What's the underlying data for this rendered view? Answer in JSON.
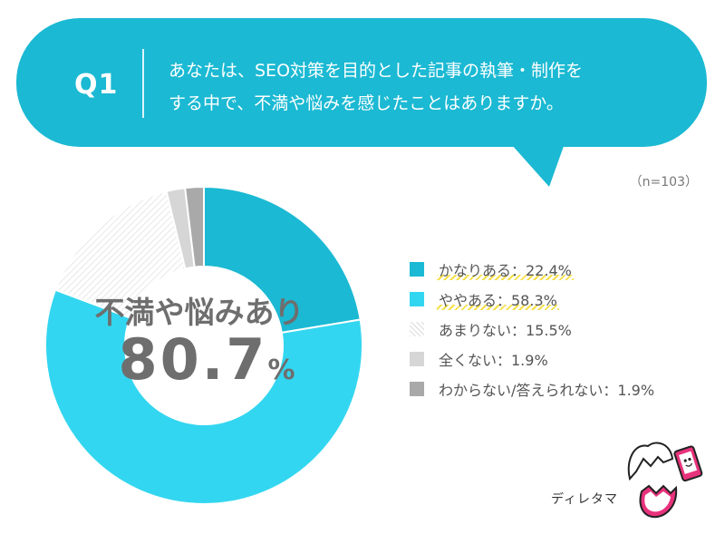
{
  "question": {
    "label": "Q1",
    "line1": "あなたは、SEO対策を目的とした記事の執筆・制作を",
    "line2": "する中で、不満や悩みを感じたことはありますか。"
  },
  "sample_size": "（n=103）",
  "center": {
    "label": "不満や悩みあり",
    "value": "80.7",
    "unit": "%"
  },
  "brand": {
    "text": "ディレタマ"
  },
  "colors": {
    "bubble": "#1bb9d3",
    "very_much": "#1bb9d3",
    "somewhat": "#33d6f0",
    "not_much": "#efefef",
    "not_at_all": "#d6d6d6",
    "unknown": "#a9a9a9",
    "highlight": "#f4e04a"
  },
  "chart_data": {
    "type": "pie",
    "title": "",
    "categories": [
      "かなりある",
      "ややある",
      "あまりない",
      "全くない",
      "わからない/答えられない"
    ],
    "values": [
      22.4,
      58.3,
      15.5,
      1.9,
      1.9
    ],
    "legend_labels": [
      "かなりある：22.4%",
      "ややある：58.3%",
      "あまりない：15.5%",
      "全くない：1.9%",
      "わからない/答えられない：1.9%"
    ],
    "legend_position": "right"
  }
}
